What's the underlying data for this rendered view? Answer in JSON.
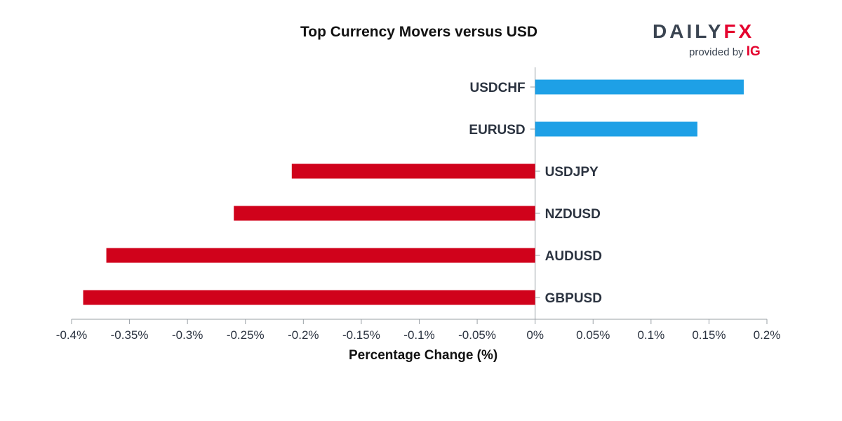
{
  "chart_data": {
    "type": "bar",
    "orientation": "horizontal",
    "title": "Top Currency Movers versus USD",
    "xlabel": "Percentage Change (%)",
    "ylabel": "",
    "categories": [
      "USDCHF",
      "EURUSD",
      "USDJPY",
      "NZDUSD",
      "AUDUSD",
      "GBPUSD"
    ],
    "values": [
      0.18,
      0.14,
      -0.21,
      -0.26,
      -0.37,
      -0.39
    ],
    "xlim": [
      -0.4,
      0.2
    ],
    "ticks": [
      -0.4,
      -0.35,
      -0.3,
      -0.25,
      -0.2,
      -0.15,
      -0.1,
      -0.05,
      0,
      0.05,
      0.1,
      0.15,
      0.2
    ],
    "tick_labels": [
      "-0.4%",
      "-0.35%",
      "-0.3%",
      "-0.25%",
      "-0.2%",
      "-0.15%",
      "-0.1%",
      "-0.05%",
      "0%",
      "0.05%",
      "0.1%",
      "0.15%",
      "0.2%"
    ],
    "colors": {
      "positive": "#1ea0e6",
      "negative": "#d0021b",
      "axis": "#9aa0a6",
      "text": "#2b3340"
    }
  },
  "branding": {
    "logo_left": "DAILY",
    "logo_right": "FX",
    "provided_by": "provided by",
    "brand": "IG"
  }
}
